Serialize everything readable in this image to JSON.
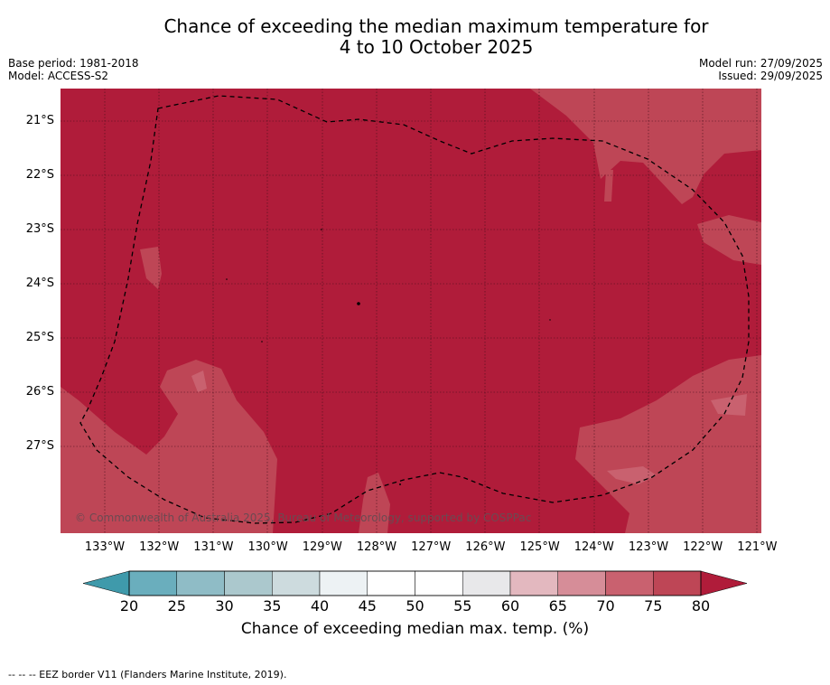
{
  "title": {
    "line1": "Chance of exceeding the median maximum temperature for",
    "line2": "4 to 10 October 2025"
  },
  "meta": {
    "base_period": "Base period: 1981-2018",
    "model": "Model: ACCESS-S2",
    "model_run": "Model run: 27/09/2025",
    "issued": "Issued: 29/09/2025"
  },
  "map": {
    "copyright": "© Commonwealth of Australia 2025, Bureau of Meteorology, supported by COSPPac",
    "lat_labels": [
      "21°S",
      "22°S",
      "23°S",
      "24°S",
      "25°S",
      "26°S",
      "27°S"
    ],
    "lon_labels": [
      "133°W",
      "132°W",
      "131°W",
      "130°W",
      "129°W",
      "128°W",
      "127°W",
      "126°W",
      "125°W",
      "124°W",
      "123°W",
      "122°W",
      "121°W"
    ],
    "dominant_category": "> 80",
    "secondary_category": "75-80"
  },
  "colorbar": {
    "ticks": [
      "20",
      "25",
      "30",
      "35",
      "40",
      "45",
      "50",
      "55",
      "60",
      "65",
      "70",
      "75",
      "80"
    ],
    "colors": [
      "#3f9aab",
      "#6aaebd",
      "#8fbcc6",
      "#abc8cd",
      "#cddbde",
      "#edf2f4",
      "#ffffff",
      "#ffffff",
      "#e8e8ea",
      "#e3b8bf",
      "#d68d98",
      "#c9616f",
      "#be4656",
      "#b01c3a"
    ],
    "label": "Chance of exceeding median max. temp. (%)"
  },
  "footer": "--  --  -- EEZ border V11 (Flanders Marine Institute, 2019)."
}
